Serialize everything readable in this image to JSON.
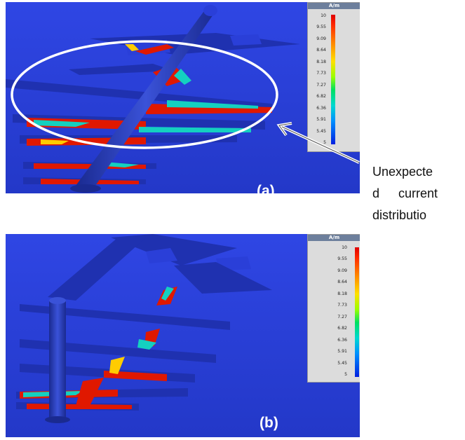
{
  "panel_a": {
    "label": "(a)",
    "legend": {
      "unit": "A/m",
      "ticks": [
        "10",
        "9.55",
        "9.09",
        "8.64",
        "8.18",
        "7.73",
        "7.27",
        "6.82",
        "6.36",
        "5.91",
        "5.45",
        "5"
      ]
    }
  },
  "panel_b": {
    "label": "(b)",
    "legend": {
      "unit": "A/m",
      "ticks": [
        "10",
        "9.55",
        "9.09",
        "8.64",
        "8.18",
        "7.73",
        "7.27",
        "6.82",
        "6.36",
        "5.91",
        "5.45",
        "5"
      ]
    }
  },
  "annotation": {
    "lines": [
      "Unexpecte",
      "d current",
      "distributio"
    ]
  },
  "colors": {
    "background": "#2a3fd8",
    "strip": "#1f32a8",
    "hot": "#e01800",
    "warm": "#ffcc00",
    "cool": "#14d0c0"
  }
}
